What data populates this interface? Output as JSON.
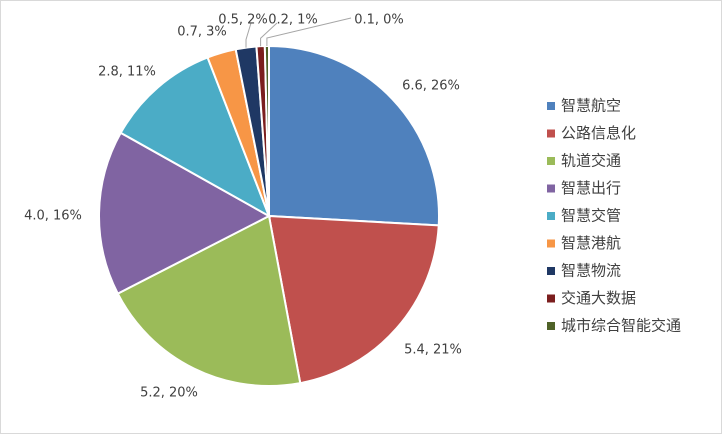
{
  "chart_data": {
    "type": "pie",
    "title": "",
    "legend_position": "right",
    "slices": [
      {
        "name": "智慧航空",
        "value": 6.6,
        "percent": "26%",
        "label": "6.6, 26%",
        "color": "#4f81bd"
      },
      {
        "name": "公路信息化",
        "value": 5.4,
        "percent": "21%",
        "label": "5.4, 21%",
        "color": "#c0504d"
      },
      {
        "name": "轨道交通",
        "value": 5.2,
        "percent": "20%",
        "label": "5.2, 20%",
        "color": "#9bbb59"
      },
      {
        "name": "智慧出行",
        "value": 4.0,
        "percent": "16%",
        "label": "4.0, 16%",
        "color": "#8064a2"
      },
      {
        "name": "智慧交管",
        "value": 2.8,
        "percent": "11%",
        "label": "2.8, 11%",
        "color": "#4bacc6"
      },
      {
        "name": "智慧港航",
        "value": 0.7,
        "percent": "3%",
        "label": "0.7, 3%",
        "color": "#f79646"
      },
      {
        "name": "智慧物流",
        "value": 0.5,
        "percent": "2%",
        "label": "0.5, 2%",
        "color": "#1f3864"
      },
      {
        "name": "交通大数据",
        "value": 0.2,
        "percent": "1%",
        "label": "0.2, 1%",
        "color": "#7b1e1e"
      },
      {
        "name": "城市综合智能交通",
        "value": 0.1,
        "percent": "0%",
        "label": "0.1, 0%",
        "color": "#4f6228"
      }
    ]
  }
}
